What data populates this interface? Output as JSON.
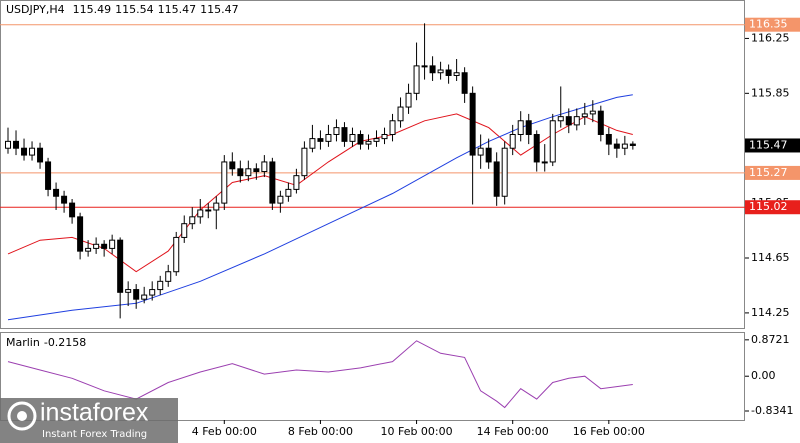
{
  "chart_data": {
    "type": "candlestick",
    "title": "USDJPY,H4",
    "header_values": [
      115.49,
      115.54,
      115.47,
      115.47
    ],
    "open": [
      115.45,
      115.5,
      115.45,
      115.4,
      115.45,
      115.35,
      115.15,
      115.1,
      115.05,
      114.95,
      114.7,
      114.72,
      114.75,
      114.72,
      114.78,
      114.4,
      114.42,
      114.35,
      114.38,
      114.42,
      114.48,
      114.55,
      114.8,
      114.9,
      114.95,
      115.0,
      115.0,
      115.05,
      115.35,
      115.3,
      115.25,
      115.3,
      115.28,
      115.35,
      115.05,
      115.1,
      115.15,
      115.25,
      115.45,
      115.52,
      115.5,
      115.55,
      115.6,
      115.5,
      115.55,
      115.48,
      115.5,
      115.52,
      115.55,
      115.65,
      115.75,
      115.85,
      116.05,
      116.05,
      116.0,
      116.02,
      115.98,
      116.0,
      115.85,
      115.4,
      115.45,
      115.35,
      115.1,
      115.45,
      115.55,
      115.65,
      115.55,
      115.35,
      115.35,
      115.65,
      115.68,
      115.62,
      115.68,
      115.7,
      115.72,
      115.55,
      115.48,
      115.45,
      115.48
    ],
    "high": [
      115.6,
      115.58,
      115.52,
      115.5,
      115.49,
      115.38,
      115.2,
      115.14,
      115.08,
      114.98,
      114.78,
      114.8,
      114.78,
      114.82,
      114.8,
      114.48,
      114.46,
      114.44,
      114.48,
      114.52,
      114.6,
      114.84,
      114.96,
      115.02,
      115.08,
      115.05,
      115.1,
      115.4,
      115.42,
      115.36,
      115.36,
      115.34,
      115.4,
      115.38,
      115.14,
      115.2,
      115.3,
      115.5,
      115.62,
      115.58,
      115.62,
      115.66,
      115.64,
      115.6,
      115.58,
      115.55,
      115.58,
      115.6,
      115.7,
      115.82,
      115.92,
      116.22,
      116.36,
      116.12,
      116.08,
      116.06,
      116.1,
      116.04,
      115.9,
      115.55,
      115.52,
      115.42,
      115.5,
      115.62,
      115.72,
      115.7,
      115.58,
      115.48,
      115.7,
      115.9,
      115.74,
      115.74,
      115.78,
      115.8,
      115.76,
      115.6,
      115.52,
      115.54,
      115.5
    ],
    "low": [
      115.41,
      115.4,
      115.36,
      115.36,
      115.3,
      115.1,
      115.0,
      114.98,
      114.9,
      114.64,
      114.66,
      114.68,
      114.66,
      114.68,
      114.21,
      114.3,
      114.28,
      114.32,
      114.34,
      114.38,
      114.44,
      114.52,
      114.76,
      114.86,
      114.9,
      114.94,
      114.86,
      115.0,
      115.25,
      115.2,
      115.21,
      115.22,
      115.24,
      115.0,
      114.98,
      115.06,
      115.12,
      115.22,
      115.42,
      115.44,
      115.46,
      115.5,
      115.46,
      115.46,
      115.44,
      115.44,
      115.46,
      115.48,
      115.5,
      115.6,
      115.7,
      115.8,
      115.95,
      115.94,
      115.95,
      115.92,
      115.94,
      115.78,
      115.04,
      115.3,
      115.3,
      115.03,
      115.04,
      115.4,
      115.5,
      115.48,
      115.28,
      115.28,
      115.32,
      115.6,
      115.56,
      115.58,
      115.62,
      115.64,
      115.5,
      115.4,
      115.38,
      115.4,
      115.44
    ],
    "close": [
      115.5,
      115.45,
      115.4,
      115.45,
      115.35,
      115.15,
      115.1,
      115.05,
      114.95,
      114.7,
      114.72,
      114.75,
      114.72,
      114.78,
      114.4,
      114.42,
      114.35,
      114.38,
      114.42,
      114.48,
      114.55,
      114.8,
      114.9,
      114.95,
      115.0,
      115.0,
      115.05,
      115.35,
      115.3,
      115.25,
      115.3,
      115.28,
      115.35,
      115.05,
      115.1,
      115.15,
      115.25,
      115.45,
      115.52,
      115.5,
      115.55,
      115.6,
      115.5,
      115.55,
      115.48,
      115.5,
      115.52,
      115.55,
      115.65,
      115.75,
      115.85,
      116.05,
      116.05,
      116.0,
      116.02,
      115.98,
      116.0,
      115.85,
      115.4,
      115.45,
      115.35,
      115.1,
      115.45,
      115.55,
      115.65,
      115.55,
      115.35,
      115.35,
      115.65,
      115.68,
      115.62,
      115.68,
      115.7,
      115.72,
      115.55,
      115.48,
      115.45,
      115.48,
      115.47
    ],
    "ylim": [
      114.14,
      116.53
    ],
    "yticks": [
      114.25,
      114.65,
      115.05,
      115.45,
      115.85,
      116.25
    ],
    "xlim": [
      -1,
      92
    ],
    "xticks": [
      {
        "value": 27,
        "label": "4 Feb 00:00"
      },
      {
        "value": 39,
        "label": "8 Feb 00:00"
      },
      {
        "value": 51,
        "label": "10 Feb 00:00"
      },
      {
        "value": 63,
        "label": "14 Feb 00:00"
      },
      {
        "value": 75,
        "label": "16 Feb 00:00"
      }
    ],
    "levels": [
      {
        "value": 116.35,
        "color": "#f4956a"
      },
      {
        "value": 115.27,
        "color": "#f4956a"
      },
      {
        "value": 115.02,
        "color": "#e8201c"
      }
    ],
    "current": 115.47,
    "lines": [
      {
        "color": "#e0141c",
        "x": [
          0,
          4,
          8,
          12,
          16,
          20,
          24,
          28,
          32,
          36,
          40,
          44,
          48,
          52,
          56,
          60,
          64,
          68,
          72,
          76,
          78
        ],
        "values": [
          114.68,
          114.78,
          114.8,
          114.72,
          114.55,
          114.7,
          115.0,
          115.2,
          115.25,
          115.18,
          115.35,
          115.5,
          115.55,
          115.65,
          115.7,
          115.6,
          115.4,
          115.55,
          115.68,
          115.58,
          115.55
        ]
      },
      {
        "color": "#1f3fe0",
        "x": [
          0,
          8,
          16,
          24,
          32,
          40,
          48,
          56,
          60,
          64,
          68,
          72,
          76,
          78
        ],
        "values": [
          114.2,
          114.27,
          114.32,
          114.48,
          114.68,
          114.9,
          115.12,
          115.38,
          115.5,
          115.6,
          115.68,
          115.75,
          115.82,
          115.84
        ]
      }
    ],
    "indicator": {
      "name": "Marlin",
      "value": -0.2158,
      "color": "#9b3fb0",
      "ylim": [
        -1.05,
        1.06
      ],
      "yticks": [
        -0.8341,
        {
          "value": 0,
          "label": "0.00"
        },
        0.8721
      ],
      "x": [
        0,
        4,
        8,
        12,
        16,
        20,
        24,
        28,
        32,
        36,
        40,
        44,
        48,
        51,
        54,
        57,
        59,
        61,
        62,
        64,
        66,
        68,
        70,
        72,
        74,
        76,
        78
      ],
      "values": [
        0.35,
        0.15,
        -0.05,
        -0.35,
        -0.55,
        -0.15,
        0.1,
        0.3,
        0.05,
        0.15,
        0.1,
        0.2,
        0.35,
        0.85,
        0.55,
        0.45,
        -0.35,
        -0.6,
        -0.75,
        -0.3,
        -0.55,
        -0.15,
        -0.05,
        0.0,
        -0.3,
        -0.25,
        -0.2
      ]
    },
    "logo": {
      "name": "instaforex",
      "tagline": "Instant Forex Trading"
    }
  }
}
